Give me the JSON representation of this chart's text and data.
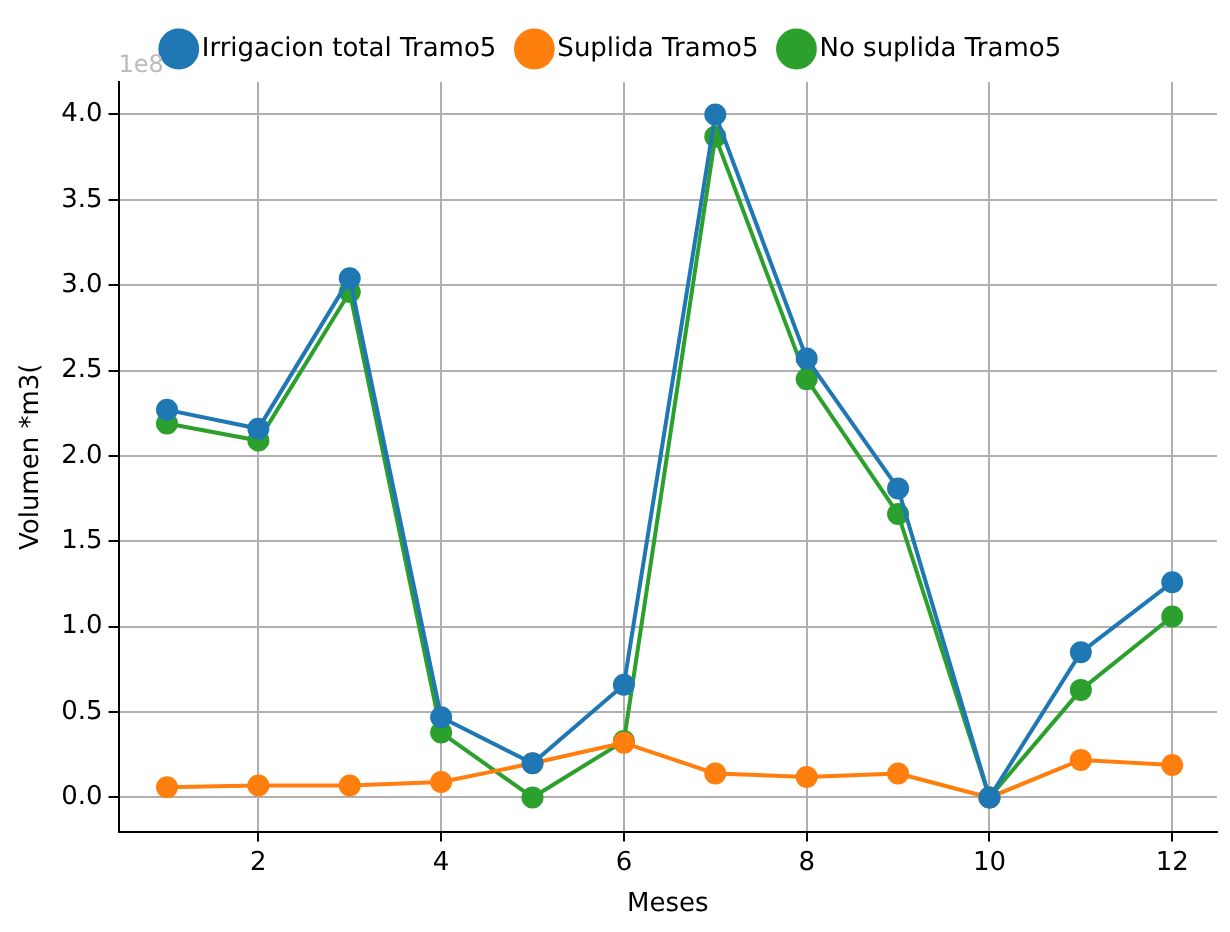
{
  "chart_data": {
    "type": "line",
    "xlabel": "Meses",
    "ylabel": "Volumen *m3(",
    "x": [
      1,
      2,
      3,
      4,
      5,
      6,
      7,
      8,
      9,
      10,
      11,
      12
    ],
    "series": [
      {
        "name": "Irrigacion total Tramo5",
        "color": "#1f77b4",
        "values": [
          2.27,
          2.16,
          3.04,
          0.47,
          0.2,
          0.66,
          4.0,
          2.57,
          1.81,
          0.0,
          0.85,
          1.26
        ]
      },
      {
        "name": "Suplida Tramo5",
        "color": "#ff7f0e",
        "values": [
          0.06,
          0.07,
          0.07,
          0.09,
          0.2,
          0.32,
          0.14,
          0.12,
          0.14,
          0.0,
          0.22,
          0.19
        ]
      },
      {
        "name": "No suplida Tramo5",
        "color": "#2ca02c",
        "values": [
          2.19,
          2.09,
          2.96,
          0.38,
          0.0,
          0.33,
          3.87,
          2.45,
          1.66,
          0.0,
          0.63,
          1.06
        ]
      }
    ],
    "xlim": [
      0.47,
      12.49
    ],
    "xticks": [
      2,
      4,
      6,
      8,
      10,
      12
    ],
    "ylim": [
      -0.2,
      4.19
    ],
    "yticks": [
      {
        "value": 0,
        "label": "0.0"
      },
      {
        "value": 0.5,
        "label": "0.5"
      },
      {
        "value": 1,
        "label": "1.0"
      },
      {
        "value": 1.5,
        "label": "1.5"
      },
      {
        "value": 2,
        "label": "2.0"
      },
      {
        "value": 2.5,
        "label": "2.5"
      },
      {
        "value": 3,
        "label": "3.0"
      },
      {
        "value": 3.5,
        "label": "3.5"
      },
      {
        "value": 4,
        "label": "4.0"
      }
    ],
    "annotations": [
      "1e8"
    ],
    "grid": true,
    "legend": "top",
    "marker": "circle",
    "line_style": "solid"
  }
}
